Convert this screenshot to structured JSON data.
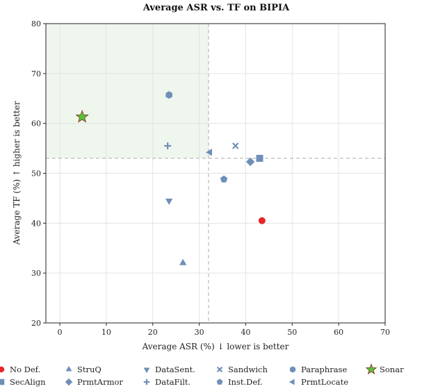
{
  "chart_data": {
    "type": "scatter",
    "title": "Average ASR vs. TF on BIPIA",
    "xlabel": "Average ASR (%) ↓ lower is better",
    "ylabel": "Average TF (%) ↑ higher is better",
    "xlim": [
      -3,
      70
    ],
    "ylim": [
      20,
      80
    ],
    "xticks": [
      0,
      10,
      20,
      30,
      40,
      50,
      60,
      70
    ],
    "yticks": [
      20,
      30,
      40,
      50,
      60,
      70,
      80
    ],
    "grid": true,
    "reference_lines": {
      "x": 32,
      "y": 53
    },
    "highlight_region": {
      "x": [
        -3,
        32
      ],
      "y": [
        53,
        80
      ],
      "color": "#eef6ee"
    },
    "legend_position": "bottom",
    "series": [
      {
        "name": "No Def.",
        "marker": "circle",
        "color": "#e8262a",
        "x": 43.5,
        "y": 40.5
      },
      {
        "name": "StruQ",
        "marker": "triangle-up",
        "color": "#6f8fb8",
        "x": 26.5,
        "y": 32
      },
      {
        "name": "DataSent.",
        "marker": "triangle-down",
        "color": "#6f8fb8",
        "x": 23.5,
        "y": 44.5
      },
      {
        "name": "Sandwich",
        "marker": "x",
        "color": "#6f8fb8",
        "x": 37.8,
        "y": 55.5
      },
      {
        "name": "Paraphrase",
        "marker": "hexagon",
        "color": "#6f8fb8",
        "x": 23.5,
        "y": 65.7
      },
      {
        "name": "Sonar",
        "marker": "star",
        "color": "#54c23a",
        "x": 4.8,
        "y": 61.3
      },
      {
        "name": "SecAlign",
        "marker": "square",
        "color": "#6f8fb8",
        "x": 43.0,
        "y": 53.0
      },
      {
        "name": "PrmtArmor",
        "marker": "diamond",
        "color": "#6f8fb8",
        "x": 41.0,
        "y": 52.3
      },
      {
        "name": "DataFilt.",
        "marker": "plus",
        "color": "#6f8fb8",
        "x": 23.2,
        "y": 55.5
      },
      {
        "name": "Inst.Def.",
        "marker": "pentagon",
        "color": "#6f8fb8",
        "x": 35.3,
        "y": 48.8
      },
      {
        "name": "PrmtLocate",
        "marker": "triangle-left",
        "color": "#6f8fb8",
        "x": 32.3,
        "y": 54.2
      }
    ]
  }
}
